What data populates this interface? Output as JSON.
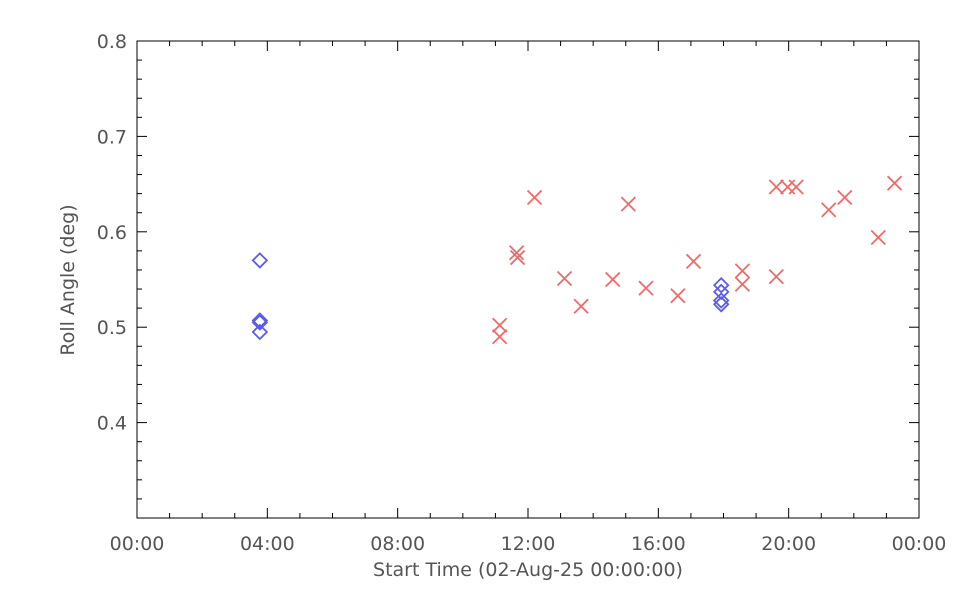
{
  "chart_data": {
    "type": "scatter",
    "title": "",
    "xlabel": "Start Time (02-Aug-25 00:00:00)",
    "ylabel": "Roll Angle (deg)",
    "xlim": [
      0,
      24
    ],
    "ylim": [
      0.3,
      0.8
    ],
    "x_tick_labels": [
      "00:00",
      "04:00",
      "08:00",
      "12:00",
      "16:00",
      "20:00",
      "00:00"
    ],
    "y_tick_labels": [
      "0.4",
      "0.5",
      "0.6",
      "0.7",
      "0.8"
    ],
    "y_ticks": [
      0.4,
      0.5,
      0.6,
      0.7,
      0.8
    ],
    "series": [
      {
        "marker": "diamond",
        "color": "#5b5bef",
        "points": [
          {
            "x": 3.77,
            "y": 0.57
          },
          {
            "x": 3.77,
            "y": 0.507
          },
          {
            "x": 3.77,
            "y": 0.505
          },
          {
            "x": 3.77,
            "y": 0.495
          },
          {
            "x": 17.93,
            "y": 0.544
          },
          {
            "x": 17.93,
            "y": 0.537
          },
          {
            "x": 17.93,
            "y": 0.528
          },
          {
            "x": 17.93,
            "y": 0.524
          }
        ]
      },
      {
        "marker": "x",
        "color": "#ef6b6b",
        "points": [
          {
            "x": 11.13,
            "y": 0.502
          },
          {
            "x": 11.13,
            "y": 0.49
          },
          {
            "x": 11.65,
            "y": 0.578
          },
          {
            "x": 11.68,
            "y": 0.573
          },
          {
            "x": 12.2,
            "y": 0.636
          },
          {
            "x": 13.12,
            "y": 0.551
          },
          {
            "x": 13.63,
            "y": 0.522
          },
          {
            "x": 14.6,
            "y": 0.55
          },
          {
            "x": 15.08,
            "y": 0.629
          },
          {
            "x": 15.62,
            "y": 0.541
          },
          {
            "x": 16.6,
            "y": 0.533
          },
          {
            "x": 17.08,
            "y": 0.569
          },
          {
            "x": 18.58,
            "y": 0.559
          },
          {
            "x": 18.58,
            "y": 0.545
          },
          {
            "x": 19.62,
            "y": 0.647
          },
          {
            "x": 19.62,
            "y": 0.553
          },
          {
            "x": 19.97,
            "y": 0.647
          },
          {
            "x": 20.23,
            "y": 0.647
          },
          {
            "x": 21.23,
            "y": 0.623
          },
          {
            "x": 21.72,
            "y": 0.636
          },
          {
            "x": 22.75,
            "y": 0.594
          },
          {
            "x": 23.25,
            "y": 0.651
          }
        ]
      }
    ]
  }
}
